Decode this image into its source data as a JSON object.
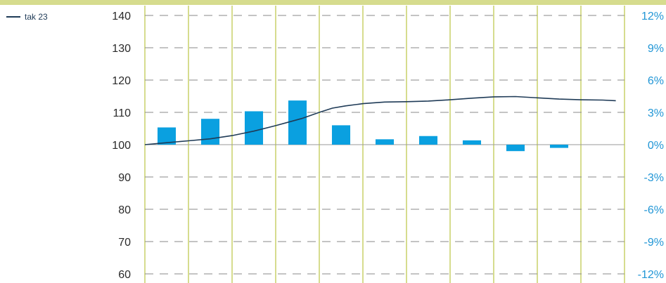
{
  "chart_data": {
    "type": "bar+line",
    "legend": {
      "label": "tak 23",
      "color": "#1f3b57",
      "placement": "top-left"
    },
    "left_axis": {
      "ticks": [
        140,
        130,
        120,
        110,
        100,
        90,
        80,
        70,
        60
      ],
      "tick_labels": [
        "140",
        "130",
        "120",
        "110",
        "100",
        "90",
        "80",
        "70",
        "60"
      ],
      "ylim": [
        60,
        140
      ],
      "reference_value": 100
    },
    "right_axis": {
      "ticks": [
        12,
        9,
        6,
        3,
        0,
        -3,
        -6,
        -9,
        -12
      ],
      "tick_labels": [
        "12%",
        "9%",
        "6%",
        "3%",
        "0%",
        "-3%",
        "-6%",
        "-9%",
        "-12%"
      ],
      "ylim": [
        -12,
        12
      ],
      "color": "#2196d6"
    },
    "categories_count": 11,
    "bars": {
      "axis": "right",
      "color": "#0aa0e0",
      "values": [
        1.6,
        2.4,
        3.1,
        4.1,
        1.8,
        0.5,
        0.8,
        0.4,
        -0.6,
        -0.3,
        null
      ]
    },
    "line": {
      "name": "tak 23",
      "axis": "left",
      "color": "#1f3b57",
      "x": [
        0,
        0.5,
        1,
        1.5,
        2,
        2.5,
        3,
        3.3,
        3.6,
        4,
        4.3,
        4.6,
        5,
        5.5,
        6,
        6.5,
        7,
        7.5,
        8,
        8.5,
        9,
        9.5,
        10,
        10.5,
        10.8
      ],
      "y": [
        100,
        100.6,
        101.2,
        101.8,
        102.8,
        104.2,
        105.9,
        107,
        108.1,
        110,
        111.3,
        112,
        112.7,
        113.2,
        113.3,
        113.5,
        113.9,
        114.4,
        114.8,
        114.9,
        114.5,
        114.1,
        113.9,
        113.8,
        113.6
      ]
    },
    "grid": {
      "horizontal": "dashed",
      "vertical": "solid",
      "vertical_color": "#d6dc8e",
      "horizontal_color": "#8a8a8a"
    }
  }
}
